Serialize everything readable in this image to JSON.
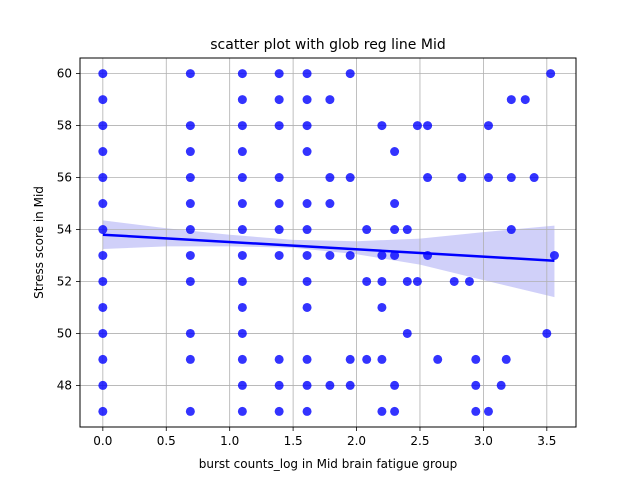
{
  "chart_data": {
    "type": "scatter",
    "title": "scatter plot with glob reg line Mid",
    "xlabel": "burst counts_log in Mid brain fatigue group",
    "ylabel": "Stress score in Mid",
    "xlim": [
      -0.18,
      3.73
    ],
    "ylim": [
      46.4,
      60.6
    ],
    "xticks": [
      0.0,
      0.5,
      1.0,
      1.5,
      2.0,
      2.5,
      3.0,
      3.5
    ],
    "xtick_labels": [
      "0.0",
      "0.5",
      "1.0",
      "1.5",
      "2.0",
      "2.5",
      "3.0",
      "3.5"
    ],
    "yticks": [
      48,
      50,
      52,
      54,
      56,
      58,
      60
    ],
    "ytick_labels": [
      "48",
      "50",
      "52",
      "54",
      "56",
      "58",
      "60"
    ],
    "grid": true,
    "points": [
      [
        0,
        60
      ],
      [
        0,
        59
      ],
      [
        0,
        58
      ],
      [
        0,
        57
      ],
      [
        0,
        56
      ],
      [
        0,
        55
      ],
      [
        0,
        54
      ],
      [
        0,
        53
      ],
      [
        0,
        52
      ],
      [
        0,
        51
      ],
      [
        0,
        50
      ],
      [
        0,
        49
      ],
      [
        0,
        48
      ],
      [
        0,
        47
      ],
      [
        0.69,
        60
      ],
      [
        0.69,
        58
      ],
      [
        0.69,
        57
      ],
      [
        0.69,
        56
      ],
      [
        0.69,
        55
      ],
      [
        0.69,
        54
      ],
      [
        0.69,
        53
      ],
      [
        0.69,
        52
      ],
      [
        0.69,
        50
      ],
      [
        0.69,
        49
      ],
      [
        0.69,
        47
      ],
      [
        1.1,
        60
      ],
      [
        1.1,
        59
      ],
      [
        1.1,
        58
      ],
      [
        1.1,
        57
      ],
      [
        1.1,
        56
      ],
      [
        1.1,
        55
      ],
      [
        1.1,
        54
      ],
      [
        1.1,
        53
      ],
      [
        1.1,
        52
      ],
      [
        1.1,
        51
      ],
      [
        1.1,
        50
      ],
      [
        1.1,
        49
      ],
      [
        1.1,
        48
      ],
      [
        1.1,
        47
      ],
      [
        1.39,
        60
      ],
      [
        1.39,
        59
      ],
      [
        1.39,
        58
      ],
      [
        1.39,
        56
      ],
      [
        1.39,
        55
      ],
      [
        1.39,
        54
      ],
      [
        1.39,
        53
      ],
      [
        1.39,
        49
      ],
      [
        1.39,
        48
      ],
      [
        1.39,
        47
      ],
      [
        1.61,
        60
      ],
      [
        1.61,
        59
      ],
      [
        1.61,
        58
      ],
      [
        1.61,
        57
      ],
      [
        1.61,
        55
      ],
      [
        1.61,
        54
      ],
      [
        1.61,
        53
      ],
      [
        1.61,
        52
      ],
      [
        1.61,
        51
      ],
      [
        1.61,
        49
      ],
      [
        1.61,
        48
      ],
      [
        1.61,
        47
      ],
      [
        1.79,
        59
      ],
      [
        1.79,
        56
      ],
      [
        1.79,
        55
      ],
      [
        1.79,
        53
      ],
      [
        1.79,
        48
      ],
      [
        1.95,
        60
      ],
      [
        1.95,
        56
      ],
      [
        1.95,
        53
      ],
      [
        1.95,
        49
      ],
      [
        1.95,
        48
      ],
      [
        2.08,
        54
      ],
      [
        2.08,
        52
      ],
      [
        2.08,
        49
      ],
      [
        2.2,
        58
      ],
      [
        2.2,
        53
      ],
      [
        2.2,
        52
      ],
      [
        2.2,
        51
      ],
      [
        2.2,
        49
      ],
      [
        2.2,
        47
      ],
      [
        2.3,
        57
      ],
      [
        2.3,
        55
      ],
      [
        2.3,
        54
      ],
      [
        2.3,
        53
      ],
      [
        2.3,
        48
      ],
      [
        2.3,
        47
      ],
      [
        2.4,
        54
      ],
      [
        2.4,
        52
      ],
      [
        2.4,
        50
      ],
      [
        2.48,
        58
      ],
      [
        2.48,
        52
      ],
      [
        2.56,
        58
      ],
      [
        2.56,
        56
      ],
      [
        2.56,
        53
      ],
      [
        2.64,
        49
      ],
      [
        2.77,
        52
      ],
      [
        2.83,
        56
      ],
      [
        2.89,
        52
      ],
      [
        2.94,
        49
      ],
      [
        2.94,
        48
      ],
      [
        2.94,
        47
      ],
      [
        3.04,
        58
      ],
      [
        3.04,
        56
      ],
      [
        3.04,
        47
      ],
      [
        3.14,
        48
      ],
      [
        3.18,
        49
      ],
      [
        3.22,
        59
      ],
      [
        3.22,
        56
      ],
      [
        3.22,
        54
      ],
      [
        3.33,
        59
      ],
      [
        3.4,
        56
      ],
      [
        3.5,
        50
      ],
      [
        3.53,
        60
      ],
      [
        3.56,
        53
      ]
    ],
    "regression": {
      "x": [
        0.0,
        3.56
      ],
      "y": [
        53.8,
        52.8
      ]
    },
    "confidence_band": {
      "x": [
        0.0,
        0.5,
        1.0,
        1.5,
        2.0,
        2.5,
        3.0,
        3.56
      ],
      "upper": [
        54.35,
        54.05,
        53.8,
        53.6,
        53.55,
        53.65,
        53.9,
        54.15
      ],
      "lower": [
        53.25,
        53.35,
        53.35,
        53.3,
        53.05,
        52.65,
        52.05,
        51.4
      ]
    },
    "colors": {
      "points": "#0000ff",
      "line": "#0000ff",
      "band": "#c8c8f8",
      "grid": "#b0b0b0"
    }
  }
}
